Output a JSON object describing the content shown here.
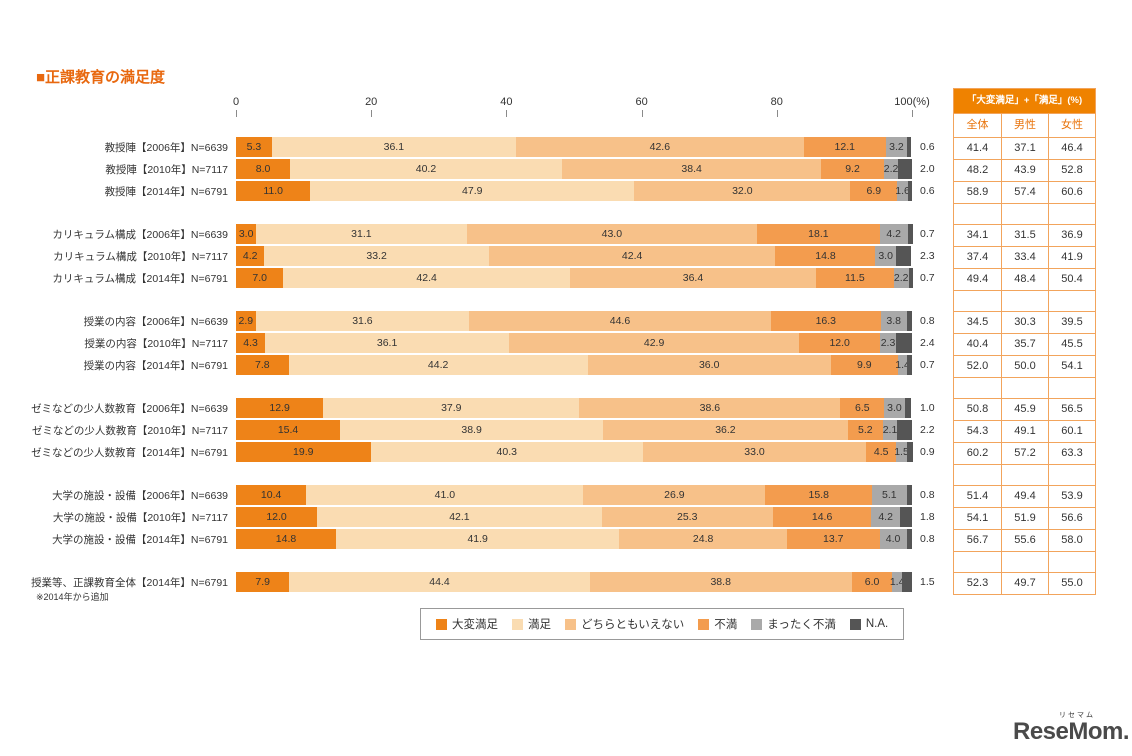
{
  "title": "■正課教育の満足度",
  "footnote": "※2014年から追加",
  "summary_table": {
    "header": "「大変満足」+「満足」(%)",
    "columns": [
      "全体",
      "男性",
      "女性"
    ]
  },
  "logo": {
    "text": "ReseMom.",
    "ruby": "リセマム"
  },
  "chart_data": {
    "type": "bar",
    "stacked": true,
    "orientation": "horizontal",
    "xlim": [
      0,
      100
    ],
    "grid": false,
    "legend_position": "bottom",
    "axis_ticks": [
      {
        "value": 0,
        "label": "0"
      },
      {
        "value": 20,
        "label": "20"
      },
      {
        "value": 40,
        "label": "40"
      },
      {
        "value": 60,
        "label": "60"
      },
      {
        "value": 80,
        "label": "80"
      },
      {
        "value": 100,
        "label": "100(%)"
      }
    ],
    "series": [
      {
        "name": "大変満足",
        "key": "very-satisfied",
        "color": "#EE8318"
      },
      {
        "name": "満足",
        "key": "satisfied",
        "color": "#FADCB2"
      },
      {
        "name": "どちらともいえない",
        "key": "neutral",
        "color": "#F7C189"
      },
      {
        "name": "不満",
        "key": "dissatisfied",
        "color": "#F39C4E"
      },
      {
        "name": "まったく不満",
        "key": "very-dissatisfied",
        "color": "#A9A9A9"
      },
      {
        "name": "N.A.",
        "key": "na",
        "color": "#555555"
      }
    ],
    "summary_columns": [
      "全体",
      "男性",
      "女性"
    ],
    "groups": [
      {
        "rows": [
          {
            "label": "教授陣【2006年】N=6639",
            "values": [
              "5.3",
              "36.1",
              "42.6",
              "12.1",
              "3.2",
              "0.6"
            ],
            "summary": [
              "41.4",
              "37.1",
              "46.4"
            ]
          },
          {
            "label": "教授陣【2010年】N=7117",
            "values": [
              "8.0",
              "40.2",
              "38.4",
              "9.2",
              "2.2",
              "2.0"
            ],
            "summary": [
              "48.2",
              "43.9",
              "52.8"
            ]
          },
          {
            "label": "教授陣【2014年】N=6791",
            "values": [
              "11.0",
              "47.9",
              "32.0",
              "6.9",
              "1.6",
              "0.6"
            ],
            "summary": [
              "58.9",
              "57.4",
              "60.6"
            ]
          }
        ]
      },
      {
        "rows": [
          {
            "label": "カリキュラム構成【2006年】N=6639",
            "values": [
              "3.0",
              "31.1",
              "43.0",
              "18.1",
              "4.2",
              "0.7"
            ],
            "summary": [
              "34.1",
              "31.5",
              "36.9"
            ]
          },
          {
            "label": "カリキュラム構成【2010年】N=7117",
            "values": [
              "4.2",
              "33.2",
              "42.4",
              "14.8",
              "3.0",
              "2.3"
            ],
            "summary": [
              "37.4",
              "33.4",
              "41.9"
            ]
          },
          {
            "label": "カリキュラム構成【2014年】N=6791",
            "values": [
              "7.0",
              "42.4",
              "36.4",
              "11.5",
              "2.2",
              "0.7"
            ],
            "summary": [
              "49.4",
              "48.4",
              "50.4"
            ]
          }
        ]
      },
      {
        "rows": [
          {
            "label": "授業の内容【2006年】N=6639",
            "values": [
              "2.9",
              "31.6",
              "44.6",
              "16.3",
              "3.8",
              "0.8"
            ],
            "summary": [
              "34.5",
              "30.3",
              "39.5"
            ]
          },
          {
            "label": "授業の内容【2010年】N=7117",
            "values": [
              "4.3",
              "36.1",
              "42.9",
              "12.0",
              "2.3",
              "2.4"
            ],
            "summary": [
              "40.4",
              "35.7",
              "45.5"
            ]
          },
          {
            "label": "授業の内容【2014年】N=6791",
            "values": [
              "7.8",
              "44.2",
              "36.0",
              "9.9",
              "1.4",
              "0.7"
            ],
            "summary": [
              "52.0",
              "50.0",
              "54.1"
            ]
          }
        ]
      },
      {
        "rows": [
          {
            "label": "ゼミなどの少人数教育【2006年】N=6639",
            "values": [
              "12.9",
              "37.9",
              "38.6",
              "6.5",
              "3.0",
              "1.0"
            ],
            "summary": [
              "50.8",
              "45.9",
              "56.5"
            ]
          },
          {
            "label": "ゼミなどの少人数教育【2010年】N=7117",
            "values": [
              "15.4",
              "38.9",
              "36.2",
              "5.2",
              "2.1",
              "2.2"
            ],
            "summary": [
              "54.3",
              "49.1",
              "60.1"
            ]
          },
          {
            "label": "ゼミなどの少人数教育【2014年】N=6791",
            "values": [
              "19.9",
              "40.3",
              "33.0",
              "4.5",
              "1.5",
              "0.9"
            ],
            "summary": [
              "60.2",
              "57.2",
              "63.3"
            ]
          }
        ]
      },
      {
        "rows": [
          {
            "label": "大学の施設・設備【2006年】N=6639",
            "values": [
              "10.4",
              "41.0",
              "26.9",
              "15.8",
              "5.1",
              "0.8"
            ],
            "summary": [
              "51.4",
              "49.4",
              "53.9"
            ]
          },
          {
            "label": "大学の施設・設備【2010年】N=7117",
            "values": [
              "12.0",
              "42.1",
              "25.3",
              "14.6",
              "4.2",
              "1.8"
            ],
            "summary": [
              "54.1",
              "51.9",
              "56.6"
            ]
          },
          {
            "label": "大学の施設・設備【2014年】N=6791",
            "values": [
              "14.8",
              "41.9",
              "24.8",
              "13.7",
              "4.0",
              "0.8"
            ],
            "summary": [
              "56.7",
              "55.6",
              "58.0"
            ]
          }
        ]
      },
      {
        "rows": [
          {
            "label": "授業等、正課教育全体【2014年】N=6791",
            "values": [
              "7.9",
              "44.4",
              "38.8",
              "6.0",
              "1.4",
              "1.5"
            ],
            "summary": [
              "52.3",
              "49.7",
              "55.0"
            ]
          }
        ]
      }
    ]
  }
}
